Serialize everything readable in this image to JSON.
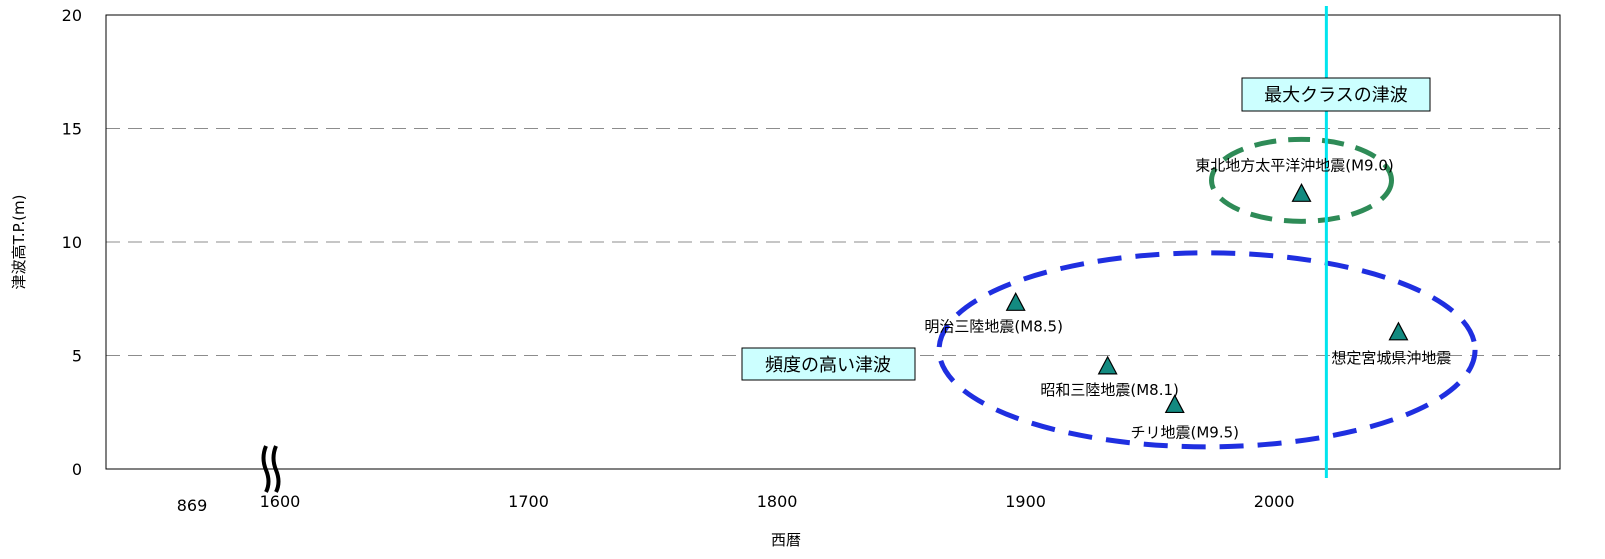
{
  "chart_data": {
    "type": "scatter",
    "title": "",
    "xlabel": "西暦",
    "ylabel": "津波高T.P.(m)",
    "xlim": [
      1530,
      2115
    ],
    "ylim": [
      0,
      20
    ],
    "grid": "horizontal-dashed",
    "y_ticks": [
      "0",
      "5",
      "10",
      "15",
      "20"
    ],
    "x_ticks": [
      {
        "value": 1600,
        "label": "1600"
      },
      {
        "value": 1700,
        "label": "1700"
      },
      {
        "value": 1800,
        "label": "1800"
      },
      {
        "value": 1900,
        "label": "1900"
      },
      {
        "value": 2000,
        "label": "2000"
      }
    ],
    "axis_break": {
      "before_label": "869"
    },
    "points": [
      {
        "x": 1896,
        "y": 7.3,
        "label": "明治三陸地震(M8.5)",
        "label_color": "#000000"
      },
      {
        "x": 1933,
        "y": 4.5,
        "label": "昭和三陸地震(M8.1)",
        "label_color": "#000000"
      },
      {
        "x": 1960,
        "y": 2.8,
        "label": "チリ地震(M9.5)",
        "label_color": "#000000"
      },
      {
        "x": 2011,
        "y": 12.1,
        "label": "東北地方太平洋沖地震(M9.0)",
        "label_color": "#ff0000"
      },
      {
        "x": 2050,
        "y": 6.0,
        "label": "想定宮城県沖地震",
        "label_color": "#000000"
      }
    ],
    "reference_line": {
      "x": 2021,
      "color": "#00e5ee"
    },
    "groups": [
      {
        "label": "頻度の高い津波",
        "color": "#1f2fe0"
      },
      {
        "label": "最大クラスの津波",
        "color": "#2e8b57"
      }
    ],
    "marker_color": "#138a80"
  }
}
